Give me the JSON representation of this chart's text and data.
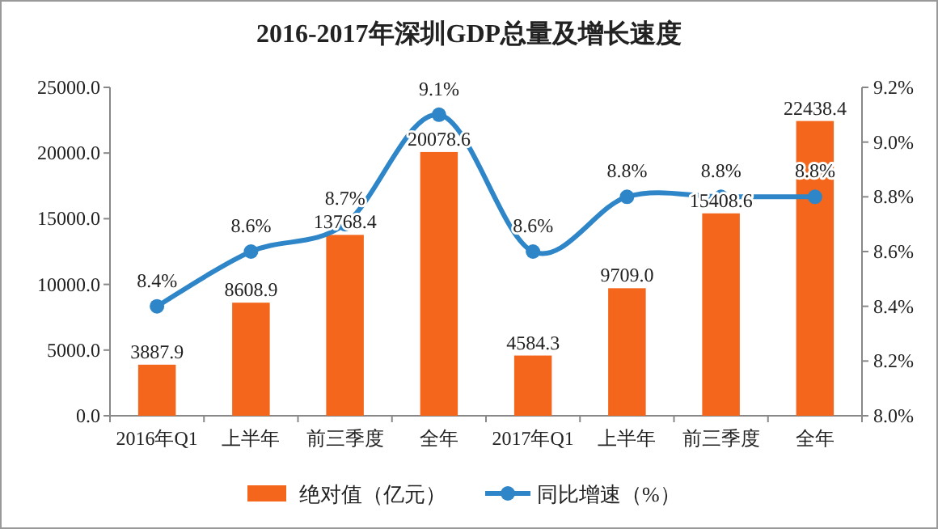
{
  "chart_data": {
    "type": "bar",
    "title": "2016-2017年深圳GDP总量及增长速度",
    "categories": [
      "2016年Q1",
      "上半年",
      "前三季度",
      "全年",
      "2017年Q1",
      "上半年",
      "前三季度",
      "全年"
    ],
    "series": [
      {
        "name": "绝对值（亿元）",
        "color": "#f4661b",
        "values": [
          3887.9,
          8608.9,
          13768.4,
          20078.6,
          4584.3,
          9709.0,
          15408.6,
          22438.4
        ],
        "value_labels": [
          "3887.9",
          "8608.9",
          "13768.4",
          "20078.6",
          "4584.3",
          "9709.0",
          "15408.6",
          "22438.4"
        ]
      },
      {
        "name": "同比增速（%）",
        "type": "line",
        "axis": "y2",
        "color": "#2e86c8",
        "values": [
          8.4,
          8.6,
          8.7,
          9.1,
          8.6,
          8.8,
          8.8,
          8.8
        ],
        "value_labels": [
          "8.4%",
          "8.6%",
          "8.7%",
          "9.1%",
          "8.6%",
          "8.8%",
          "8.8%",
          "8.8%"
        ]
      }
    ],
    "ylim": [
      0,
      25000
    ],
    "yticks": [
      {
        "value": 0,
        "label": "0.0"
      },
      {
        "value": 5000,
        "label": "5000.0"
      },
      {
        "value": 10000,
        "label": "10000.0"
      },
      {
        "value": 15000,
        "label": "15000.0"
      },
      {
        "value": 20000,
        "label": "20000.0"
      },
      {
        "value": 25000,
        "label": "25000.0"
      }
    ],
    "y2lim": [
      8.0,
      9.2
    ],
    "y2ticks": [
      {
        "value": 8.0,
        "label": "8.0%"
      },
      {
        "value": 8.2,
        "label": "8.2%"
      },
      {
        "value": 8.4,
        "label": "8.4%"
      },
      {
        "value": 8.6,
        "label": "8.6%"
      },
      {
        "value": 8.8,
        "label": "8.8%"
      },
      {
        "value": 9.0,
        "label": "9.0%"
      },
      {
        "value": 9.2,
        "label": "9.2%"
      }
    ],
    "marker": "circle",
    "grid": false,
    "legend": "bottom"
  }
}
